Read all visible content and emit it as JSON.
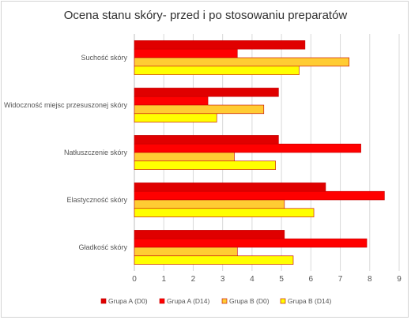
{
  "chart_data": {
    "type": "bar",
    "orientation": "horizontal",
    "title": "Ocena stanu skóry- przed i po stosowaniu preparatów",
    "categories": [
      "Suchość skóry",
      "Widoczność miejsc przesuszonej skóry",
      "Natłuszczenie skóry",
      "Elastyczność skóry",
      "Gładkość skóry"
    ],
    "series": [
      {
        "name": "Grupa A (D0)",
        "color": "#e00000",
        "values": [
          5.8,
          4.9,
          4.9,
          6.5,
          5.1
        ]
      },
      {
        "name": "Grupa A (D14)",
        "color": "#ff0000",
        "values": [
          3.5,
          2.5,
          7.7,
          8.5,
          7.9
        ]
      },
      {
        "name": "Grupa B (D0)",
        "color": "#ffcc33",
        "values": [
          7.3,
          4.4,
          3.4,
          5.1,
          3.5
        ]
      },
      {
        "name": "Grupa B (D14)",
        "color": "#ffff00",
        "values": [
          5.6,
          2.8,
          4.8,
          6.1,
          5.4
        ]
      }
    ],
    "xlim": [
      0,
      9
    ],
    "x_ticks": [
      "0",
      "1",
      "2",
      "3",
      "4",
      "5",
      "6",
      "7",
      "8",
      "9"
    ],
    "grid": true,
    "legend_position": "bottom"
  }
}
